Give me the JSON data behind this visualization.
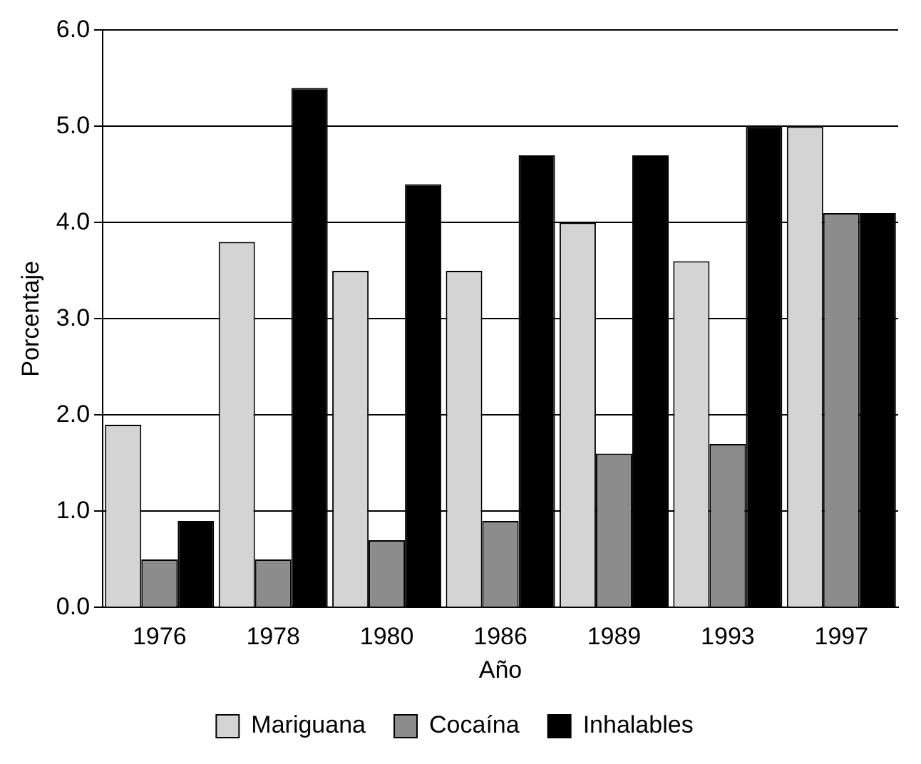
{
  "chart_data": {
    "type": "bar",
    "xlabel": "Año",
    "ylabel": "Porcentaje",
    "categories": [
      "1976",
      "1978",
      "1980",
      "1986",
      "1989",
      "1993",
      "1997"
    ],
    "series": [
      {
        "name": "Mariguana",
        "color": "#d4d4d4",
        "values": [
          1.9,
          3.8,
          3.5,
          3.5,
          4.0,
          3.6,
          5.0
        ]
      },
      {
        "name": "Cocaína",
        "color": "#8c8c8c",
        "values": [
          0.5,
          0.5,
          0.7,
          0.9,
          1.6,
          1.7,
          4.1
        ]
      },
      {
        "name": "Inhalables",
        "color": "#000000",
        "values": [
          0.9,
          5.4,
          4.4,
          4.7,
          4.7,
          5.0,
          4.1
        ]
      }
    ],
    "ylim": [
      0,
      6
    ],
    "yticks": [
      {
        "value": 0,
        "label": "0.0"
      },
      {
        "value": 1,
        "label": "1.0"
      },
      {
        "value": 2,
        "label": "2.0"
      },
      {
        "value": 3,
        "label": "3.0"
      },
      {
        "value": 4,
        "label": "4.0"
      },
      {
        "value": 5,
        "label": "5.0"
      },
      {
        "value": 6,
        "label": "6.0"
      }
    ],
    "grid": "y",
    "legend": "bottom"
  }
}
